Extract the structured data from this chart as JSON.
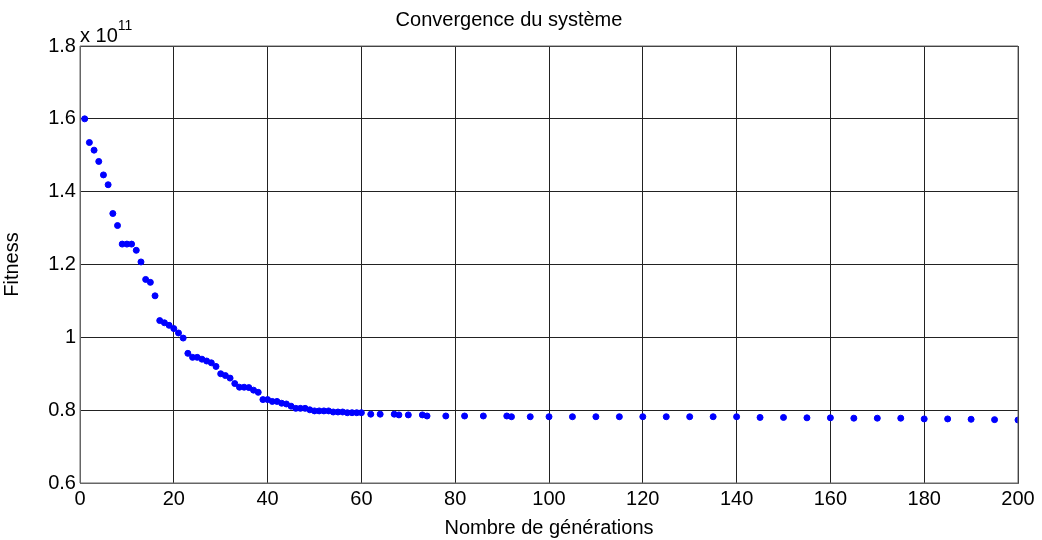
{
  "chart_data": {
    "type": "scatter",
    "title": "Convergence du système",
    "xlabel": "Nombre de générations",
    "ylabel": "Fitness",
    "annotations": [
      "x 10$^{11}$"
    ],
    "x": [
      1,
      2,
      3,
      4,
      5,
      6,
      7,
      8,
      9,
      10,
      11,
      12,
      13,
      14,
      15,
      16,
      17,
      18,
      19,
      20,
      21,
      22,
      23,
      24,
      25,
      26,
      27,
      28,
      29,
      30,
      31,
      32,
      33,
      34,
      35,
      36,
      37,
      38,
      39,
      40,
      41,
      42,
      43,
      44,
      45,
      46,
      47,
      48,
      49,
      50,
      51,
      52,
      53,
      54,
      55,
      56,
      57,
      58,
      59,
      60,
      62,
      64,
      67,
      68,
      70,
      73,
      74,
      78,
      82,
      86,
      91,
      92,
      96,
      100,
      105,
      110,
      115,
      120,
      125,
      130,
      135,
      140,
      145,
      150,
      155,
      160,
      165,
      170,
      175,
      180,
      185,
      190,
      195,
      200
    ],
    "series": [
      {
        "color": "#0000ff",
        "values": [
          1.6,
          1.535,
          1.514,
          1.483,
          1.446,
          1.419,
          1.34,
          1.307,
          1.256,
          1.256,
          1.256,
          1.239,
          1.207,
          1.159,
          1.151,
          1.114,
          1.046,
          1.04,
          1.033,
          1.024,
          1.012,
          0.998,
          0.956,
          0.945,
          0.945,
          0.94,
          0.935,
          0.93,
          0.92,
          0.9,
          0.895,
          0.888,
          0.873,
          0.863,
          0.863,
          0.862,
          0.855,
          0.849,
          0.829,
          0.829,
          0.824,
          0.824,
          0.819,
          0.817,
          0.811,
          0.805,
          0.805,
          0.805,
          0.801,
          0.798,
          0.798,
          0.798,
          0.798,
          0.795,
          0.795,
          0.795,
          0.793,
          0.793,
          0.793,
          0.793,
          0.789,
          0.789,
          0.789,
          0.787,
          0.787,
          0.787,
          0.784,
          0.784,
          0.784,
          0.784,
          0.784,
          0.782,
          0.782,
          0.782,
          0.782,
          0.782,
          0.782,
          0.782,
          0.782,
          0.782,
          0.782,
          0.782,
          0.78,
          0.78,
          0.779,
          0.779,
          0.778,
          0.778,
          0.778,
          0.776,
          0.776,
          0.775,
          0.774,
          0.773
        ]
      }
    ],
    "xlim": [
      0,
      200
    ],
    "xticks": [
      0,
      20,
      40,
      60,
      80,
      100,
      120,
      140,
      160,
      180,
      200
    ],
    "ylim": [
      0.6,
      1.8
    ],
    "yticks": [
      0.6,
      0.8,
      1,
      1.2,
      1.4,
      1.6,
      1.8
    ],
    "grid": true,
    "legend": false,
    "marker": "circle"
  }
}
